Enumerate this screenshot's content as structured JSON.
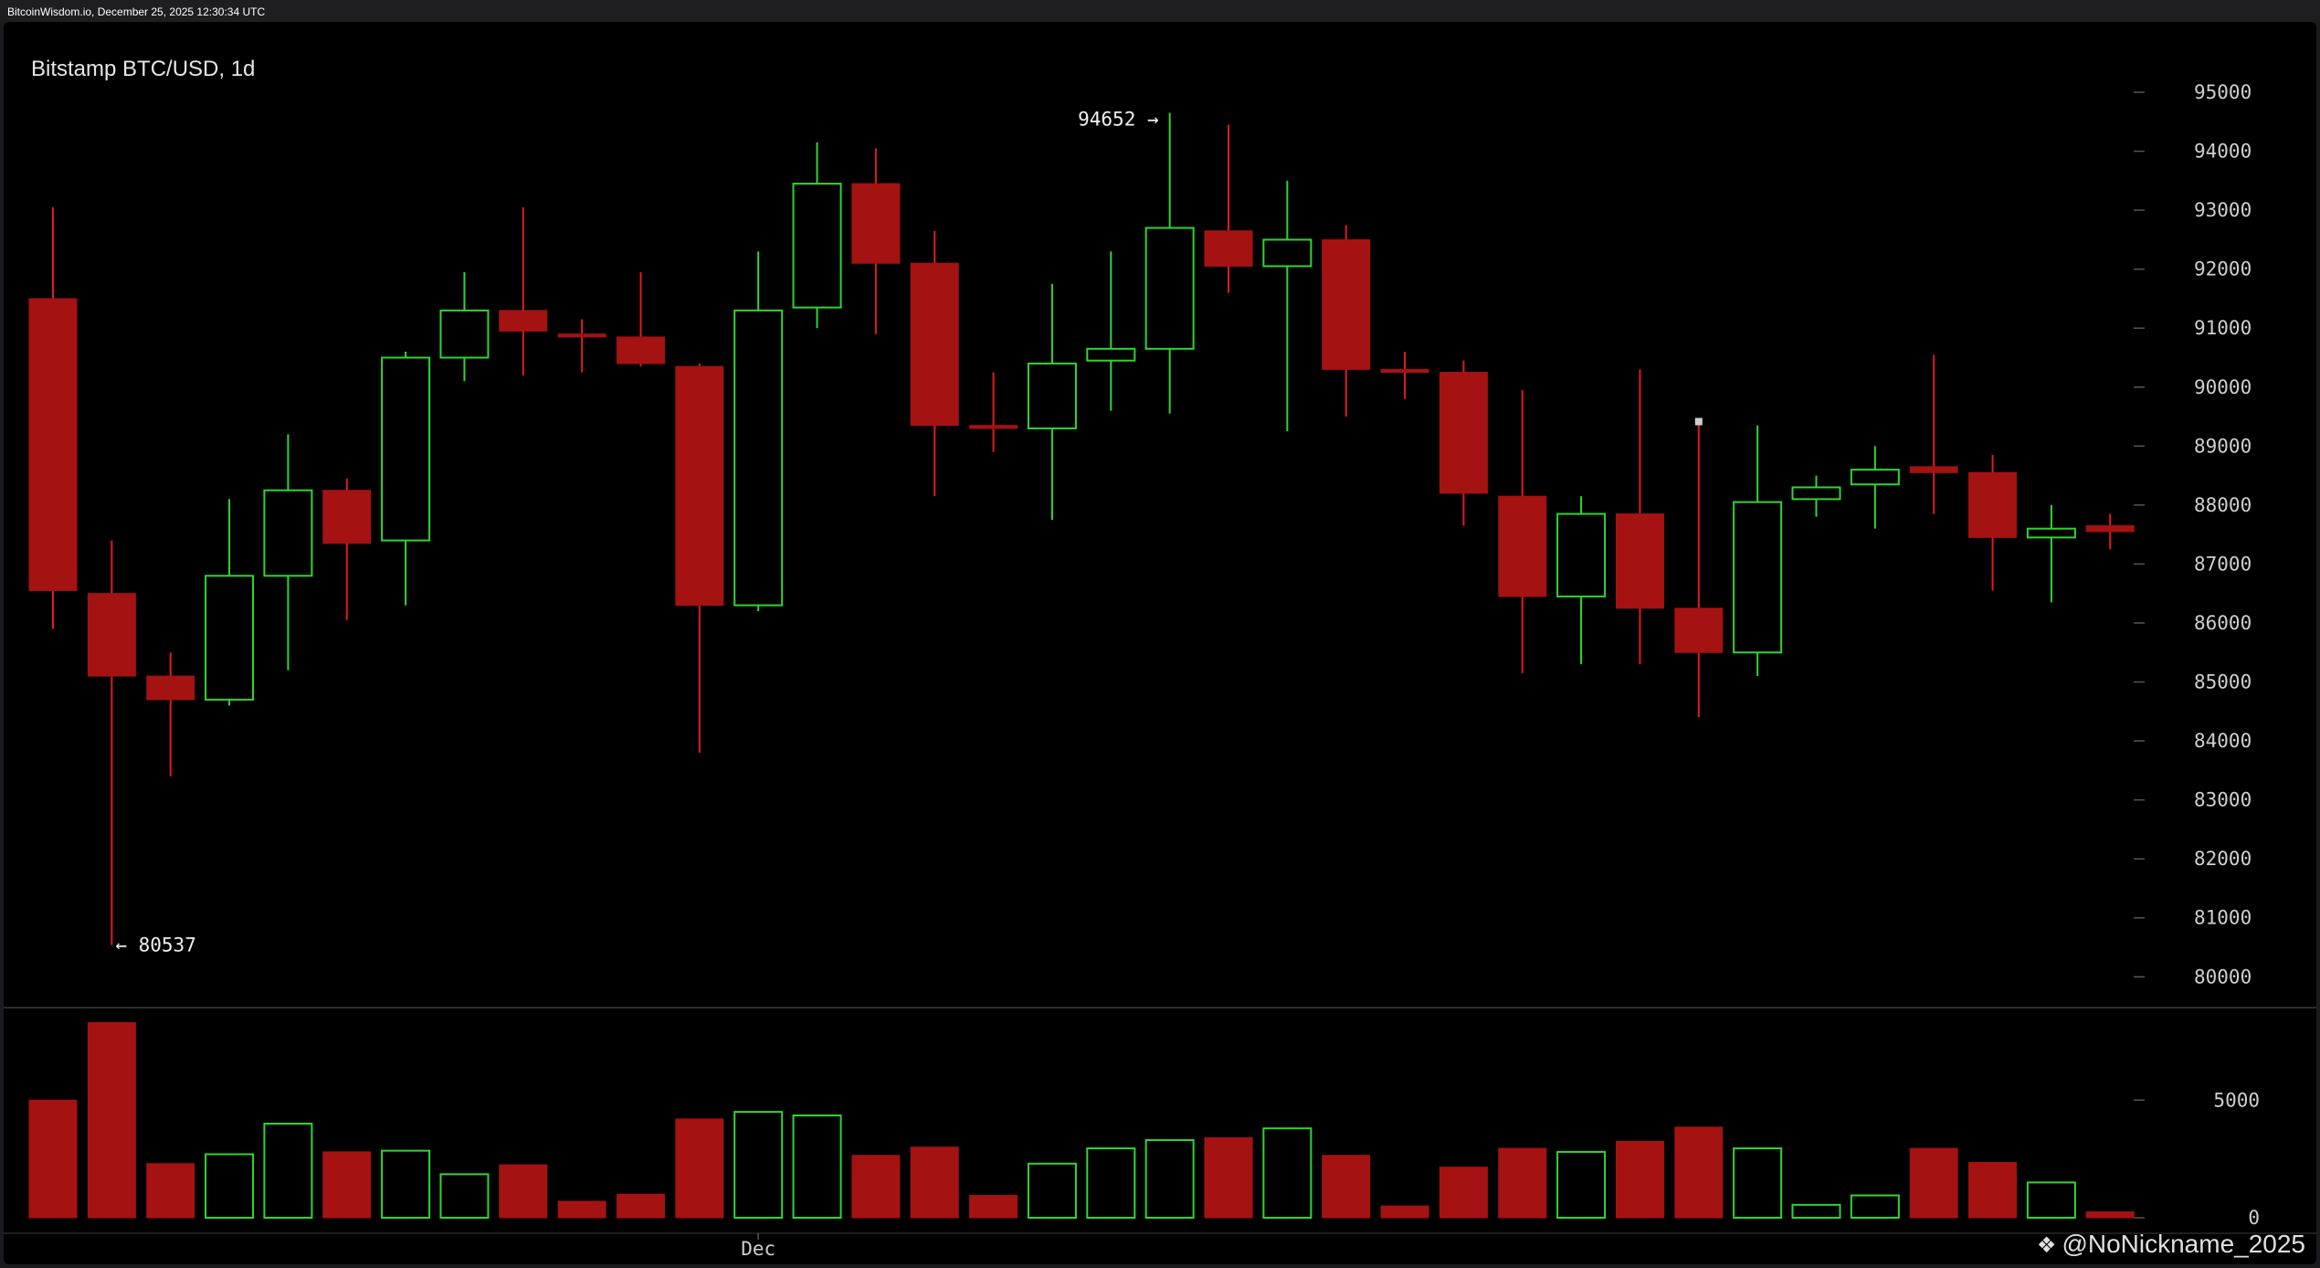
{
  "header": {
    "text": "BitcoinWisdom.io, December 25, 2025 12:30:34 UTC"
  },
  "chart_title": "Bitstamp BTC/USD, 1d",
  "watermark": {
    "icon": "binance-square-icon",
    "text": "@NoNickname_2025"
  },
  "colors": {
    "up": "#2fd62f",
    "down": "#a41212",
    "down_wick": "#e01c1c",
    "axis_text": "#cfcfcf",
    "grid_tick": "#555555"
  },
  "chart_data": {
    "type": "candlestick",
    "title": "Bitstamp BTC/USD, 1d",
    "price_axis": {
      "ticks": [
        80000,
        81000,
        82000,
        83000,
        84000,
        85000,
        86000,
        87000,
        88000,
        89000,
        90000,
        91000,
        92000,
        93000,
        94000,
        95000
      ],
      "range": [
        79500,
        96000
      ]
    },
    "volume_axis": {
      "ticks": [
        0,
        5000
      ],
      "range": [
        0,
        10000
      ]
    },
    "x_label": "Dec",
    "x_label_index": 12,
    "annotations": {
      "high": {
        "value": "94652",
        "text": "94652 →",
        "index": 19
      },
      "low": {
        "value": "80537",
        "text": "← 80537",
        "index": 1
      }
    },
    "candles": [
      {
        "o": 91500,
        "h": 93050,
        "l": 85900,
        "c": 86550,
        "v": 5000
      },
      {
        "o": 86500,
        "h": 87400,
        "l": 80537,
        "c": 85100,
        "v": 8300
      },
      {
        "o": 85100,
        "h": 85500,
        "l": 83400,
        "c": 84700,
        "v": 2300
      },
      {
        "o": 84700,
        "h": 88100,
        "l": 84600,
        "c": 86800,
        "v": 2700
      },
      {
        "o": 86800,
        "h": 89200,
        "l": 85200,
        "c": 88250,
        "v": 4000
      },
      {
        "o": 88250,
        "h": 88450,
        "l": 86050,
        "c": 87350,
        "v": 2800
      },
      {
        "o": 87400,
        "h": 90600,
        "l": 86300,
        "c": 90500,
        "v": 2850
      },
      {
        "o": 90500,
        "h": 91950,
        "l": 90100,
        "c": 91300,
        "v": 1850
      },
      {
        "o": 91300,
        "h": 93050,
        "l": 90200,
        "c": 90950,
        "v": 2250
      },
      {
        "o": 90900,
        "h": 91150,
        "l": 90250,
        "c": 90850,
        "v": 700
      },
      {
        "o": 90850,
        "h": 91950,
        "l": 90350,
        "c": 90400,
        "v": 1000
      },
      {
        "o": 90350,
        "h": 90400,
        "l": 83800,
        "c": 86300,
        "v": 4200
      },
      {
        "o": 86300,
        "h": 92300,
        "l": 86200,
        "c": 91300,
        "v": 4500
      },
      {
        "o": 91350,
        "h": 94150,
        "l": 91000,
        "c": 93450,
        "v": 4350
      },
      {
        "o": 93450,
        "h": 94050,
        "l": 90900,
        "c": 92100,
        "v": 2650
      },
      {
        "o": 92100,
        "h": 92650,
        "l": 88150,
        "c": 89350,
        "v": 3000
      },
      {
        "o": 89350,
        "h": 90250,
        "l": 88900,
        "c": 89300,
        "v": 950
      },
      {
        "o": 89300,
        "h": 91750,
        "l": 87750,
        "c": 90400,
        "v": 2300
      },
      {
        "o": 90450,
        "h": 92300,
        "l": 89600,
        "c": 90650,
        "v": 2950
      },
      {
        "o": 90650,
        "h": 94652,
        "l": 89550,
        "c": 92700,
        "v": 3300
      },
      {
        "o": 92650,
        "h": 94450,
        "l": 91600,
        "c": 92050,
        "v": 3400
      },
      {
        "o": 92050,
        "h": 93500,
        "l": 89250,
        "c": 92500,
        "v": 3800
      },
      {
        "o": 92500,
        "h": 92750,
        "l": 89500,
        "c": 90300,
        "v": 2650
      },
      {
        "o": 90300,
        "h": 90600,
        "l": 89800,
        "c": 90250,
        "v": 500
      },
      {
        "o": 90250,
        "h": 90450,
        "l": 87650,
        "c": 88200,
        "v": 2150
      },
      {
        "o": 88150,
        "h": 89950,
        "l": 85150,
        "c": 86450,
        "v": 2950
      },
      {
        "o": 86450,
        "h": 88150,
        "l": 85300,
        "c": 87850,
        "v": 2800
      },
      {
        "o": 87850,
        "h": 90300,
        "l": 85300,
        "c": 86250,
        "v": 3250
      },
      {
        "o": 86250,
        "h": 89400,
        "l": 84400,
        "c": 85500,
        "v": 3850
      },
      {
        "o": 85500,
        "h": 89350,
        "l": 85100,
        "c": 88050,
        "v": 2950
      },
      {
        "o": 88100,
        "h": 88500,
        "l": 87800,
        "c": 88300,
        "v": 550
      },
      {
        "o": 88350,
        "h": 89000,
        "l": 87600,
        "c": 88600,
        "v": 950
      },
      {
        "o": 88650,
        "h": 90550,
        "l": 87850,
        "c": 88550,
        "v": 2950
      },
      {
        "o": 88550,
        "h": 88850,
        "l": 86550,
        "c": 87450,
        "v": 2350
      },
      {
        "o": 87450,
        "h": 88000,
        "l": 86350,
        "c": 87600,
        "v": 1500
      },
      {
        "o": 87650,
        "h": 87850,
        "l": 87250,
        "c": 87550,
        "v": 250
      }
    ]
  }
}
